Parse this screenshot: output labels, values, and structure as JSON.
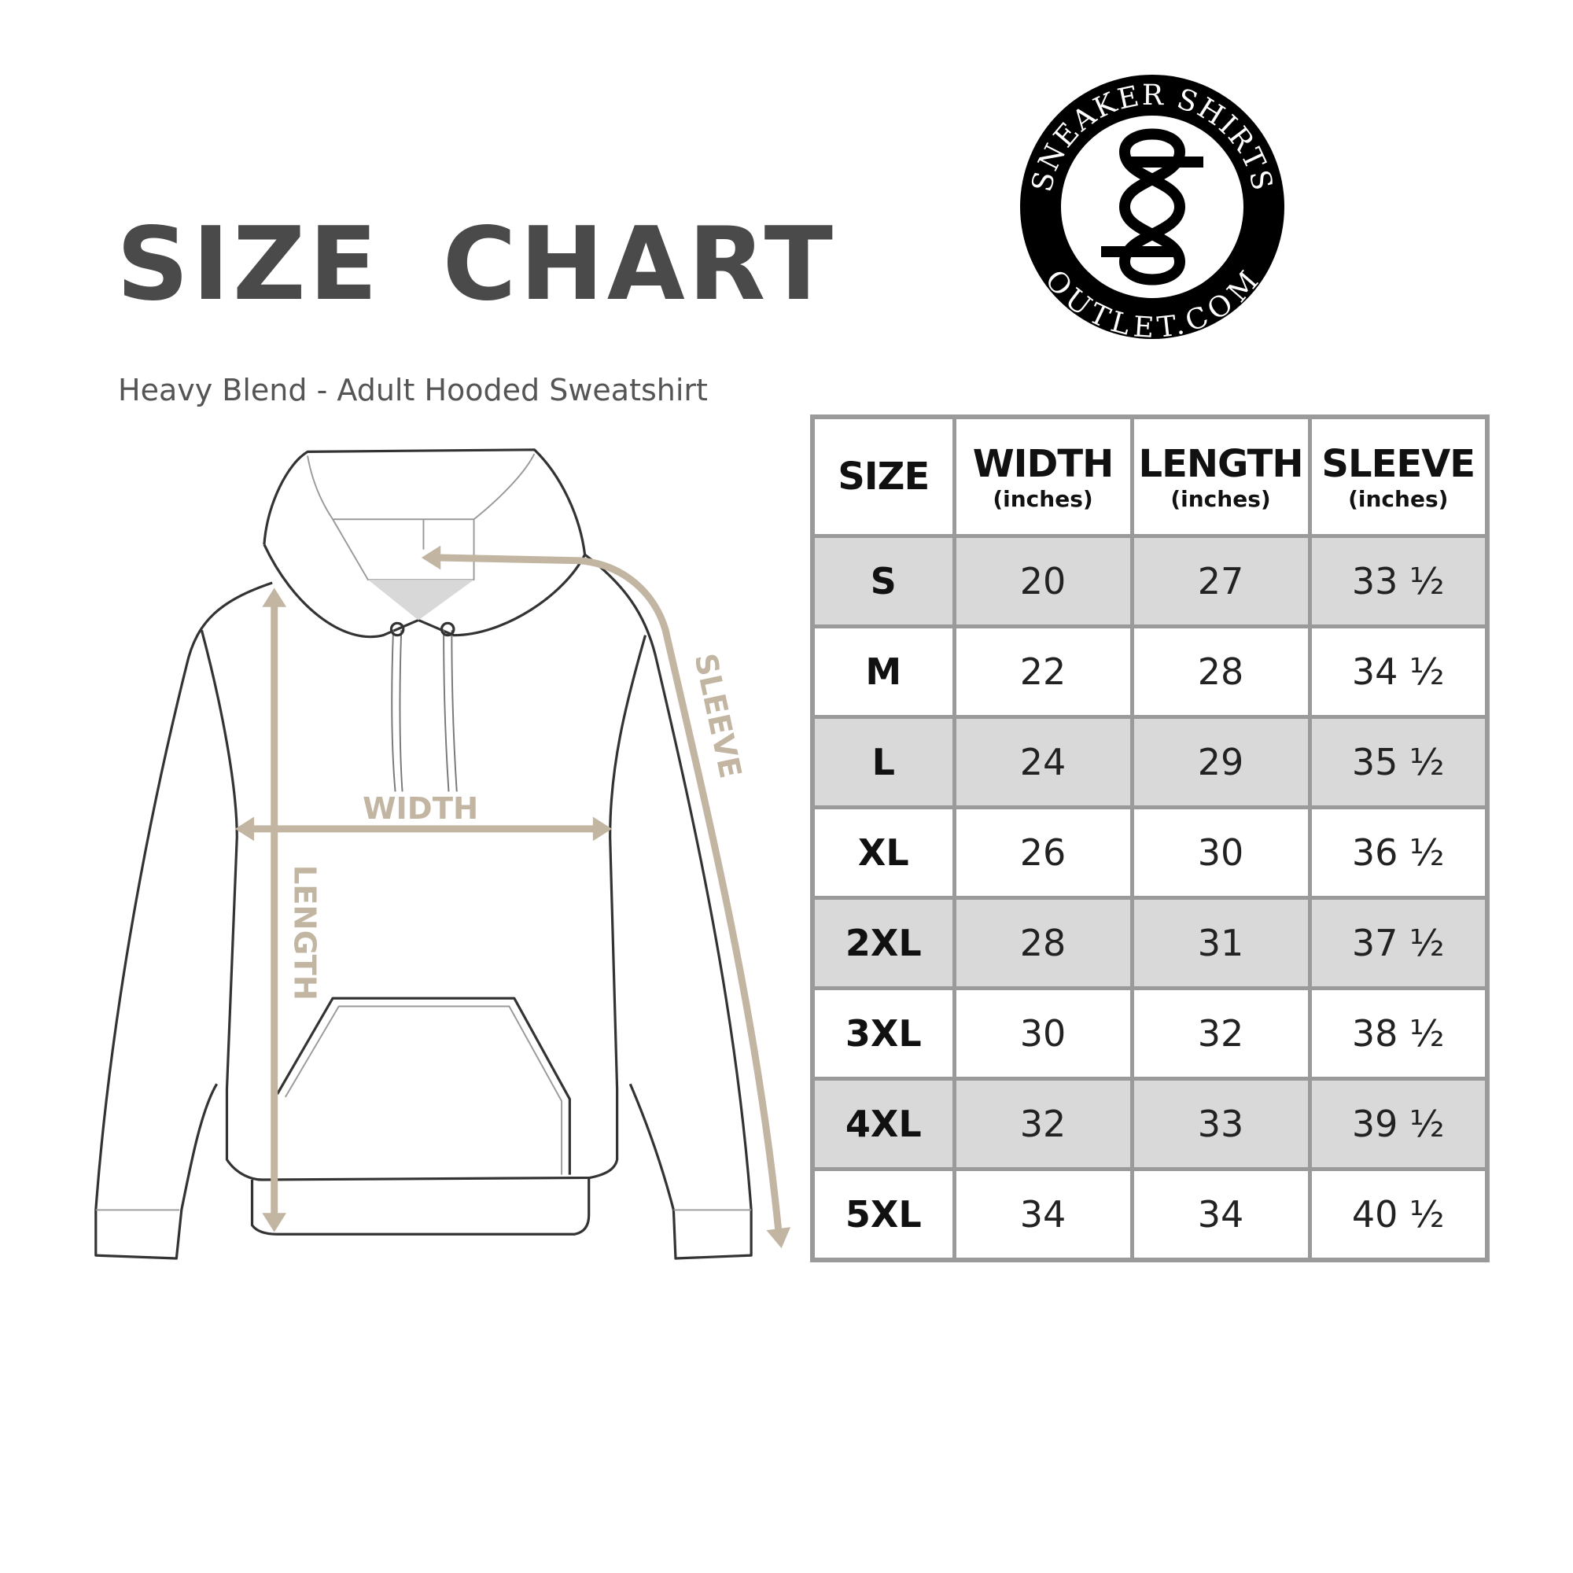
{
  "title": "SIZE CHART",
  "subtitle": "Heavy Blend - Adult Hooded Sweatshirt",
  "logo": {
    "top_text": "SNEAKER SHIRTS",
    "bottom_text": "OUTLET.COM",
    "monogram": "SS"
  },
  "diagram": {
    "width_label": "WIDTH",
    "length_label": "LENGTH",
    "sleeve_label": "SLEEVE",
    "arrow_color": "#c2b6a3"
  },
  "table": {
    "headers": [
      {
        "label": "SIZE",
        "unit": ""
      },
      {
        "label": "WIDTH",
        "unit": "(inches)"
      },
      {
        "label": "LENGTH",
        "unit": "(inches)"
      },
      {
        "label": "SLEEVE",
        "unit": "(inches)"
      }
    ],
    "rows": [
      [
        "S",
        "20",
        "27",
        "33 ½"
      ],
      [
        "M",
        "22",
        "28",
        "34 ½"
      ],
      [
        "L",
        "24",
        "29",
        "35 ½"
      ],
      [
        "XL",
        "26",
        "30",
        "36 ½"
      ],
      [
        "2XL",
        "28",
        "31",
        "37 ½"
      ],
      [
        "3XL",
        "30",
        "32",
        "38 ½"
      ],
      [
        "4XL",
        "32",
        "33",
        "39 ½"
      ],
      [
        "5XL",
        "34",
        "34",
        "40 ½"
      ]
    ]
  }
}
